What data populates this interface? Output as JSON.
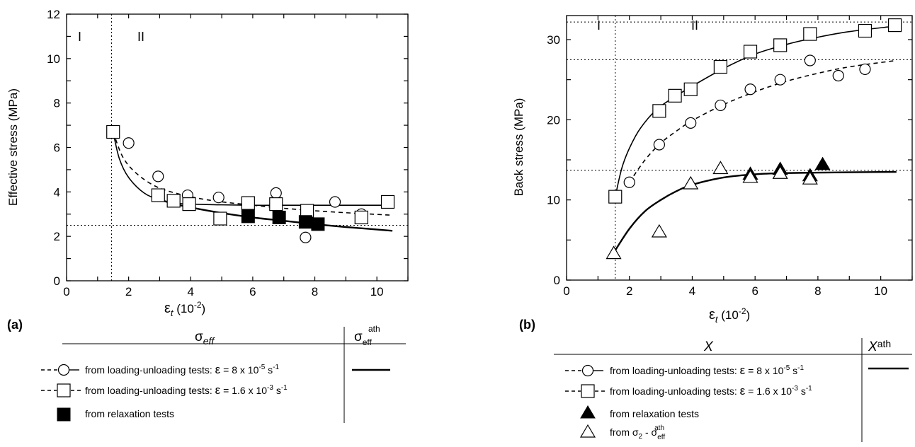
{
  "chart_data": [
    {
      "type": "scatter",
      "panel_label": "(a)",
      "ylabel": "Effective stress (MPa)",
      "xlabel_symbol": "ε",
      "xlabel_sub": "t",
      "xlabel_unit": " (10",
      "xlabel_exp": "-2",
      "xlabel_close": ")",
      "xlim": [
        0,
        11
      ],
      "ylim": [
        0,
        12
      ],
      "xticks": [
        0,
        2,
        4,
        6,
        8,
        10
      ],
      "yticks": [
        0,
        2,
        4,
        6,
        8,
        10,
        12
      ],
      "zone_labels": [
        "I",
        "II"
      ],
      "vline_x": 1.45,
      "hlines": [
        2.5
      ],
      "series": [
        {
          "marker": "circle-open",
          "x": [
            2.0,
            2.95,
            3.9,
            4.9,
            6.75,
            7.7,
            8.65,
            9.5
          ],
          "y": [
            6.2,
            4.7,
            3.85,
            3.75,
            3.95,
            1.95,
            3.55,
            3.0
          ]
        },
        {
          "marker": "square-open",
          "x": [
            1.5,
            2.95,
            3.45,
            3.95,
            4.95,
            5.85,
            6.75,
            7.75,
            9.5,
            10.35
          ],
          "y": [
            6.7,
            3.85,
            3.6,
            3.45,
            2.8,
            3.5,
            3.45,
            3.15,
            2.85,
            3.55
          ]
        },
        {
          "marker": "square-filled",
          "x": [
            5.85,
            6.85,
            7.7,
            8.1
          ],
          "y": [
            2.9,
            2.85,
            2.65,
            2.55
          ]
        }
      ],
      "curves": [
        {
          "style": "dashed",
          "x": [
            1.5,
            1.8,
            2.2,
            2.8,
            3.5,
            4.5,
            6,
            8,
            10.5
          ],
          "y": [
            6.7,
            5.6,
            4.9,
            4.3,
            3.95,
            3.65,
            3.4,
            3.15,
            2.95
          ]
        },
        {
          "style": "solid",
          "x": [
            1.5,
            1.7,
            2.0,
            2.5,
            3.0,
            3.5,
            4,
            5,
            6,
            7,
            8,
            9,
            10.5
          ],
          "y": [
            6.7,
            5.5,
            4.65,
            3.95,
            3.65,
            3.5,
            3.45,
            3.42,
            3.4,
            3.4,
            3.4,
            3.4,
            3.4
          ]
        },
        {
          "style": "solid-thick",
          "x": [
            3.0,
            3.5,
            4,
            5,
            6,
            7,
            8,
            9,
            10.5
          ],
          "y": [
            3.65,
            3.45,
            3.3,
            3.05,
            2.85,
            2.7,
            2.55,
            2.42,
            2.25
          ]
        }
      ],
      "legend": {
        "header_main": "σ",
        "header_main_sub": "eff",
        "header_ath": "σ",
        "header_ath_sub": "eff",
        "header_ath_sup": "ath",
        "rows": [
          {
            "text": "from loading-unloading tests: ",
            "rate_symbol": "ε",
            "rate_text": " = 8 x 10",
            "rate_exp": "-5",
            "unit": " s",
            "unit_exp": "-1"
          },
          {
            "text": "from loading-unloading tests: ",
            "rate_symbol": "ε",
            "rate_text": " = 1.6 x 10",
            "rate_exp": "-3",
            "unit": " s",
            "unit_exp": "-1"
          },
          {
            "text": "from relaxation tests"
          }
        ]
      }
    },
    {
      "type": "scatter",
      "panel_label": "(b)",
      "ylabel": "Back stress (MPa)",
      "xlabel_symbol": "ε",
      "xlabel_sub": "t",
      "xlabel_unit": " (10",
      "xlabel_exp": "-2",
      "xlabel_close": ")",
      "xlim": [
        0,
        11
      ],
      "ylim": [
        0,
        33
      ],
      "xticks": [
        0,
        2,
        4,
        6,
        8,
        10
      ],
      "yticks": [
        0,
        10,
        20,
        30
      ],
      "zone_labels": [
        "I",
        "II"
      ],
      "vline_x": 1.55,
      "hlines": [
        32.2,
        27.5,
        13.7
      ],
      "series": [
        {
          "marker": "square-open",
          "x": [
            1.55,
            2.95,
            3.45,
            3.95,
            4.9,
            5.85,
            6.8,
            7.75,
            9.5,
            10.45
          ],
          "y": [
            10.4,
            21.1,
            23.0,
            23.8,
            26.6,
            28.5,
            29.3,
            30.7,
            31.1,
            31.8
          ]
        },
        {
          "marker": "circle-open",
          "x": [
            2.0,
            2.95,
            3.95,
            4.9,
            5.85,
            6.8,
            7.75,
            8.65,
            9.5
          ],
          "y": [
            12.2,
            16.9,
            19.6,
            21.8,
            23.8,
            25.0,
            27.4,
            25.5,
            26.3
          ]
        },
        {
          "marker": "triangle-filled",
          "x": [
            5.85,
            6.8,
            7.75,
            8.15
          ],
          "y": [
            13.2,
            13.8,
            13.0,
            14.4
          ]
        },
        {
          "marker": "triangle-open",
          "x": [
            1.5,
            2.95,
            3.95,
            4.9,
            5.85,
            6.8,
            7.75
          ],
          "y": [
            3.3,
            6.0,
            12.0,
            13.9,
            12.8,
            13.3,
            12.6
          ]
        }
      ],
      "curves": [
        {
          "style": "solid",
          "x": [
            1.55,
            1.8,
            2.2,
            2.6,
            3.0,
            3.5,
            4,
            5,
            6,
            7,
            8,
            9,
            10.5
          ],
          "y": [
            10.4,
            14.5,
            18.0,
            20.2,
            21.7,
            23.0,
            24.2,
            26.4,
            28.2,
            29.4,
            30.3,
            31.0,
            31.7
          ]
        },
        {
          "style": "dashed",
          "x": [
            2.0,
            2.5,
            3.0,
            3.5,
            4,
            5,
            6,
            7,
            8,
            9,
            10.5
          ],
          "y": [
            12.2,
            15.0,
            17.1,
            18.6,
            19.9,
            21.9,
            23.5,
            24.8,
            25.8,
            26.6,
            27.4
          ]
        },
        {
          "style": "solid-thick",
          "x": [
            1.5,
            2.0,
            2.5,
            3.0,
            3.5,
            4,
            5,
            6,
            7,
            8,
            9,
            10.5
          ],
          "y": [
            3.4,
            6.4,
            8.6,
            10.0,
            11.1,
            11.9,
            12.8,
            13.2,
            13.35,
            13.4,
            13.45,
            13.5
          ]
        }
      ],
      "legend": {
        "header_main": "X",
        "header_ath": "X",
        "header_ath_sup": "ath",
        "rows": [
          {
            "text": "from loading-unloading tests: ",
            "rate_symbol": "ε",
            "rate_text": " = 8 x 10",
            "rate_exp": "-5",
            "unit": " s",
            "unit_exp": "-1"
          },
          {
            "text": "from loading-unloading tests: ",
            "rate_symbol": "ε",
            "rate_text": " = 1.6 x 10",
            "rate_exp": "-3",
            "unit": " s",
            "unit_exp": "-1"
          },
          {
            "text": "from relaxation tests"
          },
          {
            "text": "from σ",
            "sub": "2",
            "text2": " - σ",
            "sup2": "ath",
            "sub2": "eff"
          }
        ]
      }
    }
  ]
}
